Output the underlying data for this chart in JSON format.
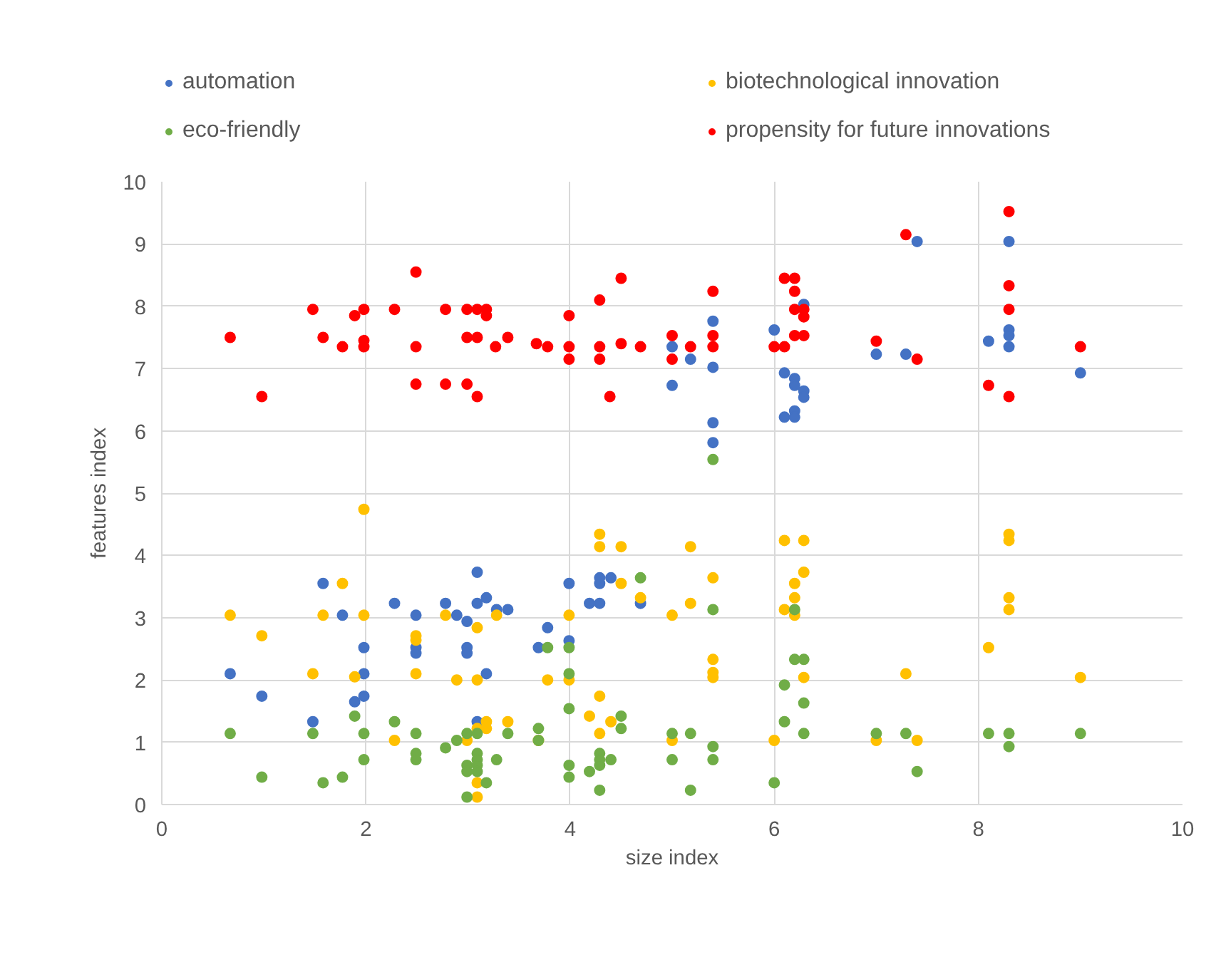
{
  "chart_data": {
    "type": "scatter",
    "xlabel": "size index",
    "ylabel": "features index",
    "xlim": [
      0,
      10
    ],
    "ylim": [
      0,
      10
    ],
    "xticks": [
      0,
      2,
      4,
      6,
      8,
      10
    ],
    "yticks": [
      0,
      1,
      2,
      3,
      4,
      5,
      6,
      7,
      8,
      9,
      10
    ],
    "grid": true,
    "legend": "top",
    "marker": "circle",
    "series": [
      {
        "name": "automation",
        "color": "#4472c4",
        "x": [
          5.0,
          5.0,
          5.18,
          5.4,
          5.4,
          5.4,
          5.4,
          6.0,
          6.1,
          6.1,
          6.2,
          6.2,
          6.2,
          6.2,
          6.29,
          6.29,
          6.29,
          7.0,
          7.4,
          7.29,
          8.1,
          8.3,
          8.3,
          8.3,
          8.3,
          9.0,
          0.67,
          0.98,
          1.48,
          1.58,
          1.77,
          1.89,
          1.98,
          1.98,
          1.98,
          2.28,
          2.49,
          2.49,
          2.49,
          2.78,
          2.89,
          2.99,
          2.99,
          2.99,
          3.09,
          3.09,
          3.18,
          3.28,
          3.39,
          3.18,
          3.09,
          3.69,
          3.78,
          3.99,
          3.99,
          4.19,
          4.29,
          4.29,
          4.29,
          4.4,
          4.69
        ],
        "values": [
          7.35,
          6.73,
          7.15,
          7.76,
          7.02,
          6.13,
          5.81,
          7.62,
          6.93,
          6.22,
          6.84,
          6.73,
          6.32,
          6.22,
          8.03,
          6.64,
          6.54,
          7.23,
          9.04,
          7.23,
          7.44,
          9.04,
          7.62,
          7.53,
          7.35,
          6.93,
          2.1,
          1.74,
          1.33,
          3.55,
          3.04,
          1.65,
          2.52,
          2.1,
          1.74,
          3.23,
          3.04,
          2.52,
          2.43,
          3.23,
          3.04,
          2.94,
          2.52,
          2.43,
          3.73,
          3.23,
          3.32,
          3.13,
          3.13,
          2.1,
          1.33,
          2.52,
          2.84,
          3.55,
          2.63,
          3.23,
          3.23,
          3.64,
          3.55,
          3.64,
          3.23
        ]
      },
      {
        "name": "biotechnological innovation",
        "color": "#ffc000",
        "x": [
          0.67,
          0.98,
          1.48,
          1.77,
          1.58,
          1.89,
          1.98,
          1.98,
          2.28,
          2.49,
          2.49,
          2.49,
          2.78,
          2.89,
          2.99,
          3.09,
          3.09,
          3.09,
          3.18,
          3.18,
          3.09,
          3.09,
          3.28,
          3.39,
          3.69,
          3.78,
          3.99,
          3.99,
          4.19,
          4.29,
          4.29,
          4.29,
          4.29,
          4.4,
          4.5,
          4.5,
          4.69,
          5.0,
          5.18,
          5.18,
          5.4,
          5.4,
          5.4,
          5.4,
          5.0,
          6.0,
          6.1,
          6.29,
          6.29,
          6.2,
          6.2,
          6.1,
          6.2,
          6.29,
          7.0,
          7.29,
          7.4,
          8.1,
          8.3,
          8.3,
          8.3,
          8.3,
          9.0
        ],
        "values": [
          3.04,
          2.71,
          2.1,
          3.55,
          3.04,
          2.05,
          4.74,
          3.04,
          1.03,
          2.71,
          2.64,
          2.1,
          3.04,
          2.0,
          1.03,
          2.84,
          2.0,
          1.22,
          1.33,
          1.22,
          0.35,
          0.12,
          3.04,
          1.33,
          1.03,
          2.0,
          3.04,
          2.0,
          1.42,
          4.34,
          4.14,
          1.74,
          1.14,
          1.33,
          4.14,
          3.55,
          3.32,
          3.04,
          4.14,
          3.23,
          3.64,
          2.33,
          2.12,
          2.04,
          1.03,
          1.03,
          4.24,
          4.24,
          3.73,
          3.55,
          3.32,
          3.13,
          3.04,
          2.04,
          1.03,
          2.1,
          1.03,
          2.52,
          4.34,
          4.24,
          3.32,
          3.13,
          2.04
        ]
      },
      {
        "name": "eco-friendly",
        "color": "#70ad47",
        "x": [
          5.4,
          0.67,
          0.98,
          1.48,
          1.58,
          1.77,
          1.89,
          1.98,
          1.98,
          2.28,
          2.49,
          2.49,
          2.49,
          2.78,
          2.89,
          2.99,
          2.99,
          2.99,
          2.99,
          3.09,
          3.09,
          3.09,
          3.09,
          3.09,
          3.18,
          3.28,
          3.39,
          3.69,
          3.69,
          3.78,
          3.99,
          3.99,
          3.99,
          3.99,
          3.99,
          4.19,
          4.29,
          4.29,
          4.29,
          4.29,
          4.4,
          4.5,
          4.5,
          4.69,
          5.0,
          5.0,
          5.18,
          5.18,
          5.4,
          5.4,
          5.4,
          6.0,
          6.1,
          6.1,
          6.2,
          6.2,
          6.29,
          6.29,
          6.29,
          7.0,
          7.29,
          7.4,
          8.1,
          8.3,
          8.3,
          9.0
        ],
        "values": [
          5.54,
          1.14,
          0.44,
          1.14,
          0.35,
          0.44,
          1.42,
          1.14,
          0.72,
          1.33,
          1.14,
          0.82,
          0.72,
          0.91,
          1.03,
          1.14,
          0.63,
          0.53,
          0.12,
          1.14,
          0.82,
          0.72,
          0.63,
          0.53,
          0.35,
          0.72,
          1.14,
          1.22,
          1.03,
          2.52,
          2.52,
          2.1,
          1.54,
          0.63,
          0.44,
          0.53,
          0.82,
          0.72,
          0.63,
          0.23,
          0.72,
          1.42,
          1.22,
          3.64,
          1.14,
          0.72,
          1.14,
          0.23,
          3.13,
          0.93,
          0.72,
          0.35,
          1.92,
          1.33,
          3.13,
          2.33,
          2.33,
          1.63,
          1.14,
          1.14,
          1.14,
          0.53,
          1.14,
          1.14,
          0.93,
          1.14
        ]
      },
      {
        "name": "propensity for future innovations",
        "color": "#ff0000",
        "x": [
          0.67,
          0.98,
          1.48,
          1.58,
          1.77,
          1.89,
          1.98,
          1.98,
          1.98,
          2.28,
          2.49,
          2.49,
          2.49,
          2.78,
          2.78,
          2.99,
          2.99,
          2.99,
          3.09,
          3.09,
          3.09,
          3.18,
          3.18,
          3.27,
          3.39,
          3.67,
          3.78,
          3.99,
          3.99,
          3.99,
          4.29,
          4.29,
          4.29,
          4.5,
          4.5,
          4.39,
          4.69,
          5.0,
          5.0,
          5.18,
          5.4,
          5.4,
          5.4,
          6.0,
          6.1,
          6.1,
          6.2,
          6.2,
          6.2,
          6.29,
          6.29,
          6.2,
          6.29,
          7.0,
          7.29,
          7.4,
          8.1,
          8.3,
          8.3,
          8.3,
          8.3,
          9.0
        ],
        "values": [
          7.5,
          6.55,
          7.95,
          7.5,
          7.35,
          7.85,
          7.95,
          7.45,
          7.35,
          7.95,
          8.55,
          7.35,
          6.75,
          7.95,
          6.75,
          7.95,
          7.5,
          6.75,
          7.95,
          7.5,
          6.55,
          7.95,
          7.85,
          7.35,
          7.5,
          7.4,
          7.35,
          7.85,
          7.35,
          7.15,
          8.1,
          7.35,
          7.15,
          8.45,
          7.4,
          6.55,
          7.35,
          7.53,
          7.15,
          7.35,
          8.24,
          7.53,
          7.35,
          7.35,
          8.45,
          7.35,
          8.45,
          8.24,
          7.95,
          7.95,
          7.83,
          7.53,
          7.53,
          7.44,
          9.15,
          7.15,
          6.73,
          9.52,
          8.33,
          7.95,
          6.55,
          7.35
        ]
      }
    ]
  }
}
